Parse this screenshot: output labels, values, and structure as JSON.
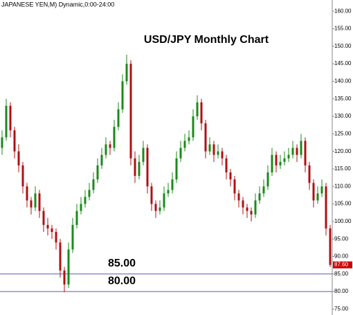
{
  "chart_data": {
    "type": "candlestick",
    "header": "JAPANESE YEN,M) Dynamic,0:00-24:00",
    "title": "USD/JPY Monthly Chart",
    "up_color": "#1a8a1a",
    "down_color": "#b01010",
    "line_color": "#5a5ab0",
    "ylim": [
      73.3,
      163.2
    ],
    "yticks": [
      {
        "value": 75,
        "label": "75.00"
      },
      {
        "value": 80,
        "label": "80.00"
      },
      {
        "value": 85,
        "label": "85.00"
      },
      {
        "value": 90,
        "label": "90.00"
      },
      {
        "value": 95,
        "label": "95.00"
      },
      {
        "value": 100,
        "label": "100.00"
      },
      {
        "value": 105,
        "label": "105.00"
      },
      {
        "value": 110,
        "label": "110.00"
      },
      {
        "value": 115,
        "label": "115.00"
      },
      {
        "value": 120,
        "label": "120.00"
      },
      {
        "value": 125,
        "label": "125.00"
      },
      {
        "value": 130,
        "label": "130.00"
      },
      {
        "value": 135,
        "label": "135.00"
      },
      {
        "value": 140,
        "label": "140.00"
      },
      {
        "value": 145,
        "label": "145.00"
      },
      {
        "value": 150,
        "label": "150.00"
      },
      {
        "value": 155,
        "label": "155.00"
      },
      {
        "value": 160,
        "label": "160.00"
      }
    ],
    "levels": [
      {
        "value": 85,
        "label": "85.00"
      },
      {
        "value": 80,
        "label": "80.00"
      }
    ],
    "last_price_label": "87.60",
    "candles": [
      [
        121,
        126,
        119,
        124
      ],
      [
        124,
        135,
        123,
        133
      ],
      [
        133,
        134,
        124,
        126
      ],
      [
        126,
        127,
        118,
        120
      ],
      [
        120,
        122,
        114,
        116
      ],
      [
        116,
        117,
        108,
        110
      ],
      [
        110,
        111,
        104,
        106
      ],
      [
        106,
        107,
        102,
        104
      ],
      [
        104,
        110,
        103,
        108
      ],
      [
        108,
        109,
        101,
        103
      ],
      [
        103,
        104,
        97,
        99
      ],
      [
        99,
        101,
        96,
        98
      ],
      [
        98,
        99,
        95,
        97
      ],
      [
        97,
        98,
        92,
        94
      ],
      [
        94,
        95,
        84,
        86
      ],
      [
        86,
        87,
        79.8,
        82
      ],
      [
        82,
        94,
        81,
        92
      ],
      [
        92,
        101,
        91,
        99
      ],
      [
        99,
        105,
        98,
        103
      ],
      [
        103,
        107,
        102,
        105
      ],
      [
        105,
        109,
        104,
        107
      ],
      [
        107,
        111,
        106,
        109
      ],
      [
        109,
        114,
        108,
        112
      ],
      [
        112,
        118,
        111,
        116
      ],
      [
        116,
        121,
        115,
        119
      ],
      [
        119,
        124,
        118,
        122
      ],
      [
        122,
        123,
        119,
        121
      ],
      [
        121,
        129,
        120,
        127
      ],
      [
        127,
        134,
        126,
        132
      ],
      [
        132,
        142,
        131,
        140
      ],
      [
        140,
        147.6,
        139,
        145
      ],
      [
        145,
        146,
        116,
        118
      ],
      [
        118,
        120,
        111,
        113
      ],
      [
        113,
        119,
        112,
        117
      ],
      [
        117,
        123,
        116,
        121
      ],
      [
        121,
        122,
        108,
        110
      ],
      [
        110,
        111,
        103,
        105
      ],
      [
        105,
        106,
        101,
        103
      ],
      [
        103,
        106,
        102,
        104
      ],
      [
        104,
        110,
        103,
        108
      ],
      [
        108,
        111,
        107,
        109
      ],
      [
        109,
        114,
        108,
        112
      ],
      [
        112,
        120,
        111,
        118
      ],
      [
        118,
        123,
        117,
        121
      ],
      [
        121,
        125,
        120,
        123
      ],
      [
        123,
        126,
        122,
        124
      ],
      [
        124,
        132,
        123,
        130
      ],
      [
        130,
        136,
        129,
        134
      ],
      [
        134,
        135,
        126,
        128
      ],
      [
        128,
        129,
        118,
        120
      ],
      [
        120,
        124,
        119,
        122
      ],
      [
        122,
        123,
        117,
        119
      ],
      [
        119,
        122,
        118,
        120
      ],
      [
        120,
        121,
        116,
        118
      ],
      [
        118,
        119,
        112,
        114
      ],
      [
        114,
        115,
        110,
        112
      ],
      [
        112,
        113,
        106,
        108
      ],
      [
        108,
        109,
        104,
        106
      ],
      [
        106,
        107,
        102,
        104
      ],
      [
        104,
        105,
        101,
        103
      ],
      [
        103,
        104,
        100,
        102
      ],
      [
        102,
        108,
        101,
        106
      ],
      [
        106,
        110,
        105,
        108
      ],
      [
        108,
        112,
        107,
        110
      ],
      [
        110,
        116,
        109,
        114
      ],
      [
        114,
        121,
        113,
        119
      ],
      [
        119,
        120,
        114,
        116
      ],
      [
        116,
        119,
        115,
        117
      ],
      [
        117,
        120,
        116,
        118
      ],
      [
        118,
        121,
        117,
        119
      ],
      [
        119,
        123,
        118,
        121
      ],
      [
        121,
        122,
        117,
        119
      ],
      [
        119,
        125,
        118,
        123
      ],
      [
        123,
        124,
        114,
        116
      ],
      [
        116,
        117,
        109,
        111
      ],
      [
        111,
        112,
        104,
        106
      ],
      [
        106,
        110,
        105,
        108
      ],
      [
        108,
        112,
        107,
        110
      ],
      [
        110,
        111,
        96,
        98
      ],
      [
        98,
        99,
        87,
        87.6
      ]
    ]
  }
}
